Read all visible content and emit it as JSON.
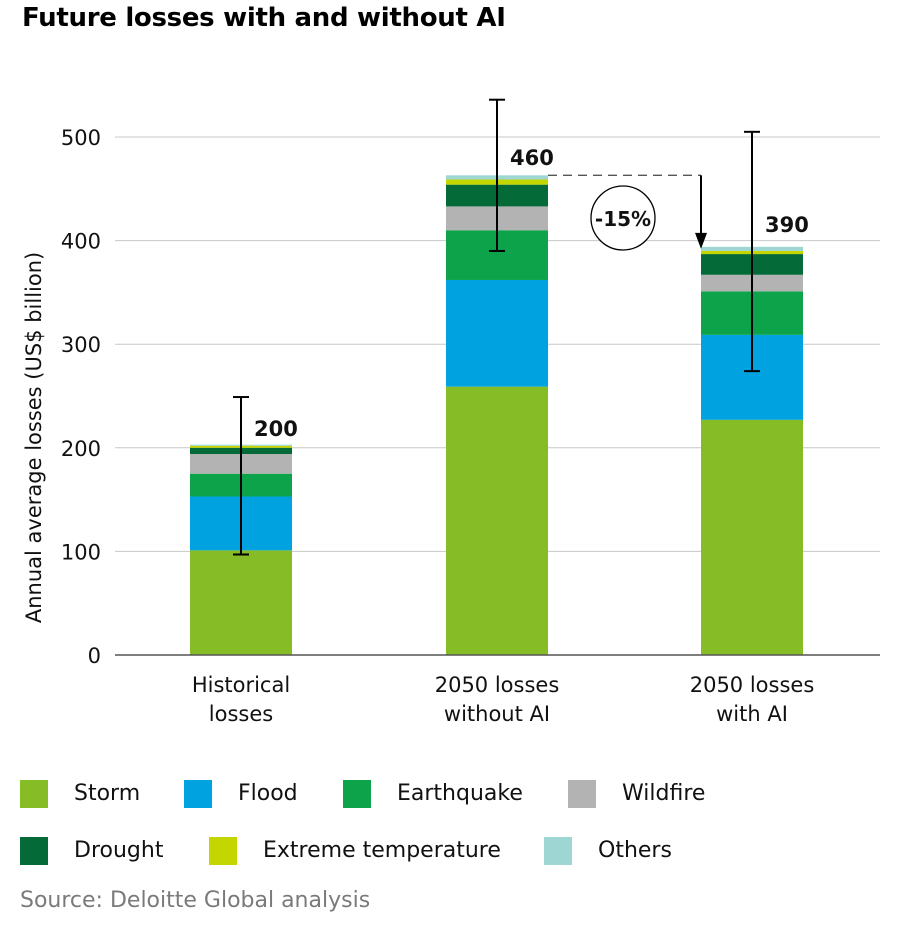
{
  "title": "Future losses with and without AI",
  "source": "Source: Deloitte Global analysis",
  "chart_data": {
    "type": "bar",
    "stacked": true,
    "title": "Future losses with and without AI",
    "xlabel": "",
    "ylabel": "Annual average losses (US$ billion)",
    "ylim": [
      0,
      540
    ],
    "yticks": [
      0,
      100,
      200,
      300,
      400,
      500
    ],
    "grid": true,
    "categories": [
      [
        "Historical",
        "losses"
      ],
      [
        "2050 losses",
        "without AI"
      ],
      [
        "2050 losses",
        "with AI"
      ]
    ],
    "series": [
      {
        "name": "Storm",
        "color": "#86bc25",
        "values": [
          101,
          259,
          227
        ]
      },
      {
        "name": "Flood",
        "color": "#00a3e0",
        "values": [
          52,
          103,
          82
        ]
      },
      {
        "name": "Earthquake",
        "color": "#0da34a",
        "values": [
          22,
          48,
          42
        ]
      },
      {
        "name": "Wildfire",
        "color": "#b3b3b3",
        "values": [
          19,
          23,
          16
        ]
      },
      {
        "name": "Drought",
        "color": "#046a38",
        "values": [
          6,
          21,
          20
        ]
      },
      {
        "name": "Extreme temperature",
        "color": "#c4d600",
        "values": [
          2,
          5,
          3
        ]
      },
      {
        "name": "Others",
        "color": "#9ed6d4",
        "values": [
          1,
          4,
          4
        ]
      }
    ],
    "totals": [
      "200",
      "460",
      "390"
    ],
    "error_bars": [
      [
        97,
        249
      ],
      [
        390,
        536
      ],
      [
        274,
        505
      ]
    ],
    "annotation": {
      "text": "-15%",
      "from": 463,
      "to": 394
    }
  }
}
